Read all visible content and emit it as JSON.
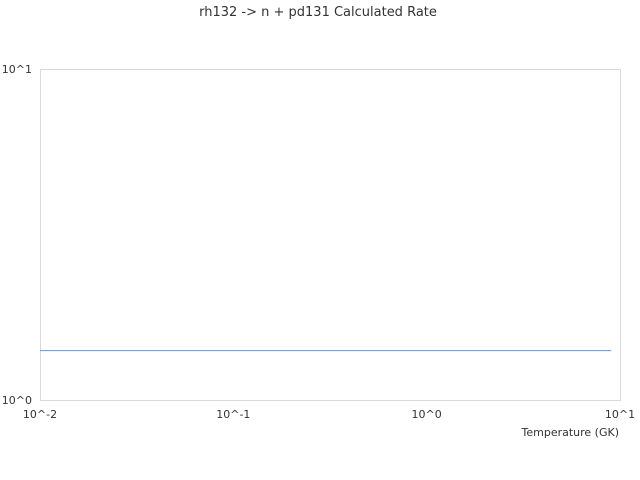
{
  "chart_data": {
    "type": "line",
    "title": "rh132 -> n + pd131 Calculated Rate",
    "xlabel": "Temperature (GK)",
    "ylabel": "",
    "x_scale": "log",
    "y_scale": "log",
    "xlim": [
      0.01,
      10
    ],
    "ylim": [
      1,
      10
    ],
    "x_tick_labels": [
      "10^-2",
      "10^-1",
      "10^0",
      "10^1"
    ],
    "y_tick_labels": [
      "10^0",
      "10^1"
    ],
    "grid": false,
    "series": [
      {
        "x": [
          0.01,
          9
        ],
        "y": [
          1.41,
          1.41
        ],
        "color": "#5b96e0"
      }
    ]
  }
}
